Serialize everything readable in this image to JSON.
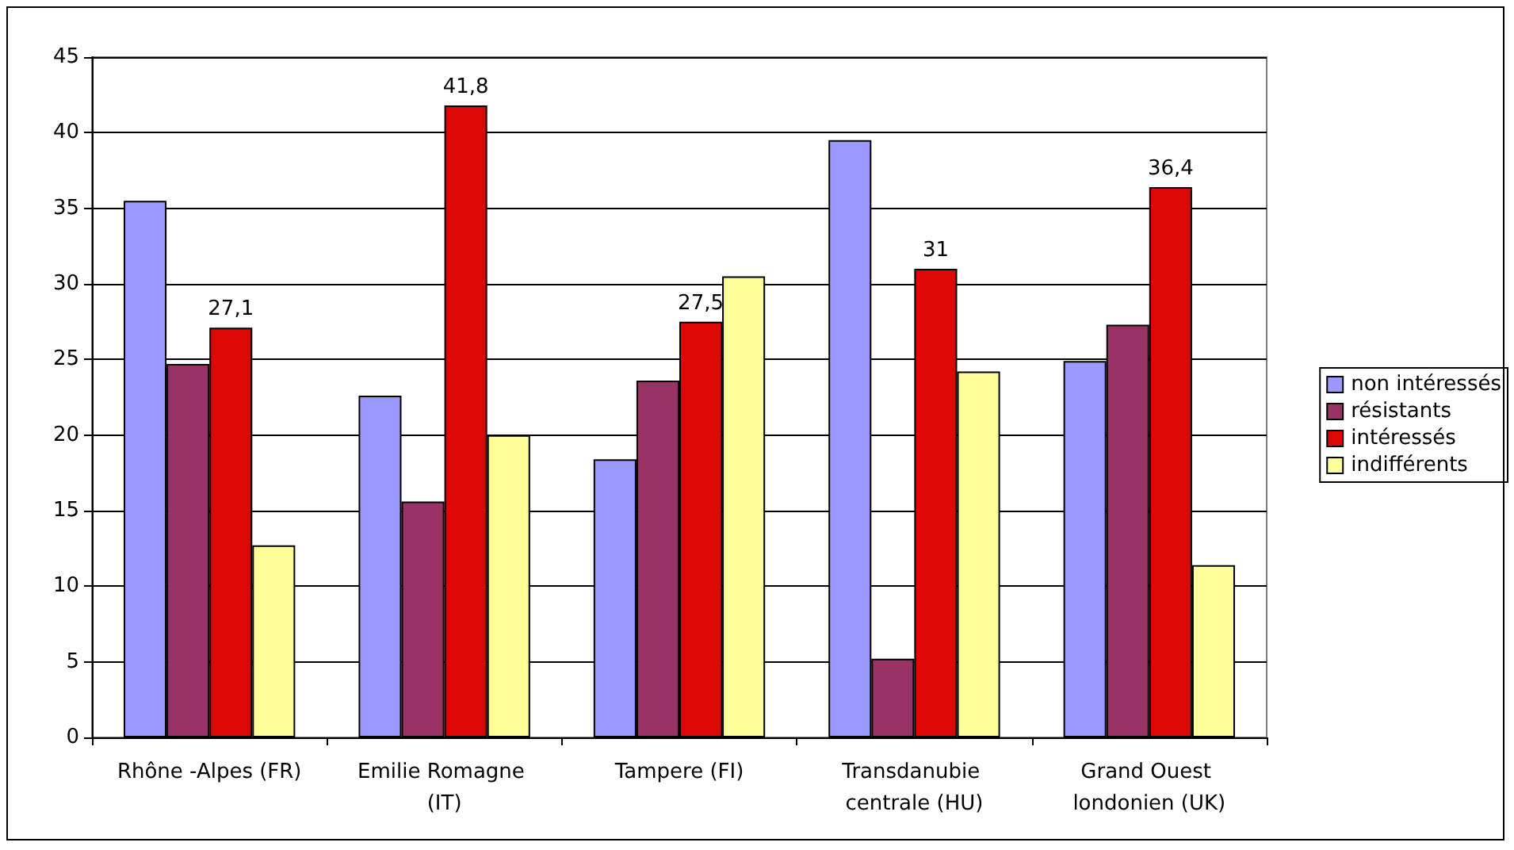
{
  "chart_data": {
    "type": "bar",
    "categories": [
      "Rhône -Alpes (FR)",
      "Emilie Romagne (IT)",
      "Tampere (FI)",
      "Transdanubie centrale (HU)",
      "Grand Ouest londonien (UK)"
    ],
    "series": [
      {
        "name": "non intéressés",
        "color": "#9999ff",
        "values": [
          35.5,
          22.6,
          18.4,
          39.5,
          24.9
        ]
      },
      {
        "name": "résistants",
        "color": "#993366",
        "values": [
          24.7,
          15.6,
          23.6,
          5.2,
          27.3
        ]
      },
      {
        "name": "intéressés",
        "color": "#dd0806",
        "values": [
          27.1,
          41.8,
          27.5,
          31,
          36.4
        ],
        "value_labels": [
          "27,1",
          "41,8",
          "27,5",
          "31",
          "36,4"
        ]
      },
      {
        "name": "indifférents",
        "color": "#ffff99",
        "values": [
          12.7,
          20.0,
          30.5,
          24.2,
          11.4
        ]
      }
    ],
    "ylim": [
      0,
      45
    ],
    "yticks": [
      0,
      5,
      10,
      15,
      20,
      25,
      30,
      35,
      40,
      45
    ],
    "grid": "y",
    "legend": "right"
  }
}
